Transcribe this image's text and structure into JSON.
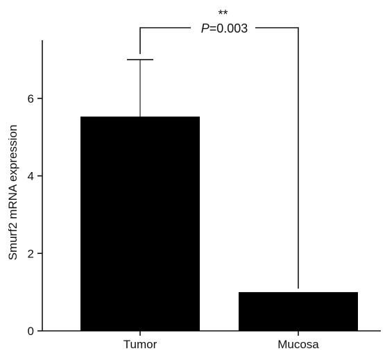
{
  "chart_data": {
    "type": "bar",
    "title": "",
    "xlabel": "",
    "ylabel": "Smurf2 mRNA expression",
    "categories": [
      "Tumor",
      "Mucosa"
    ],
    "values": [
      5.53,
      1.0
    ],
    "error_upper": [
      7.0,
      null
    ],
    "ylim": [
      0,
      7.5
    ],
    "yticks": [
      0,
      2,
      4,
      6
    ],
    "ytick_labels": [
      "0",
      "2",
      "4",
      "6"
    ],
    "grid": false,
    "legend": "none",
    "bar_color": "#000000",
    "significance": {
      "stars": "**",
      "p_italic": "P",
      "p_rest": "=0.003",
      "between": [
        "Tumor",
        "Mucosa"
      ]
    }
  }
}
